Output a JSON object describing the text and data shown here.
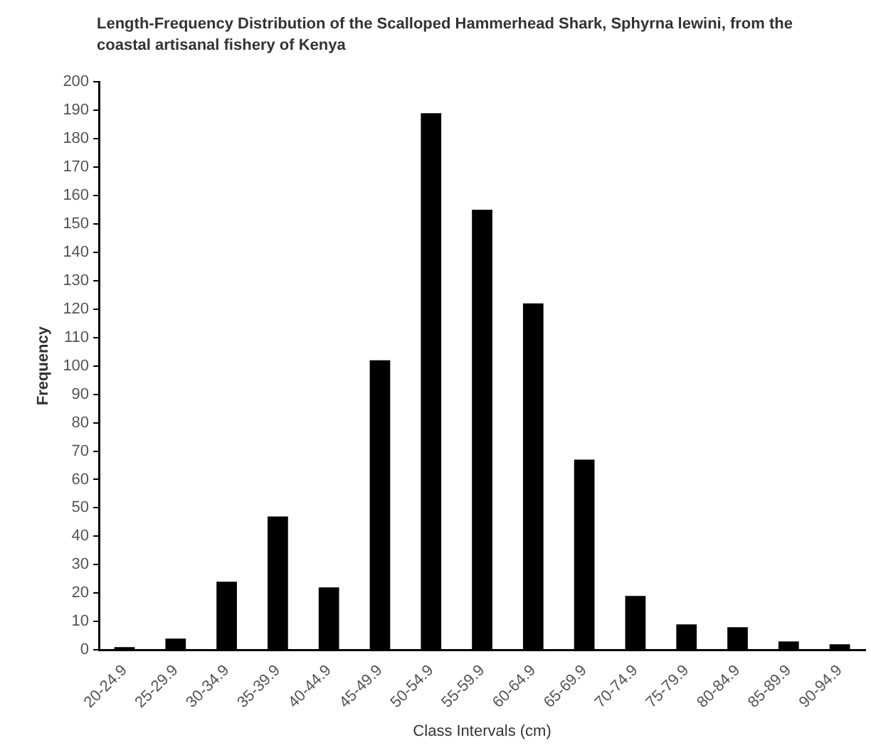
{
  "chart_data": {
    "type": "bar",
    "title": "Length-Frequency Distribution of the Scalloped Hammerhead Shark, Sphyrna lewini, from the coastal artisanal fishery of Kenya",
    "xlabel": "Class Intervals (cm)",
    "ylabel": "Frequency",
    "categories": [
      "20-24.9",
      "25-29.9",
      "30-34.9",
      "35-39.9",
      "40-44.9",
      "45-49.9",
      "50-54.9",
      "55-59.9",
      "60-64.9",
      "65-69.9",
      "70-74.9",
      "75-79.9",
      "80-84.9",
      "85-89.9",
      "90-94.9"
    ],
    "values": [
      1,
      4,
      24,
      47,
      22,
      102,
      189,
      155,
      122,
      67,
      19,
      9,
      8,
      3,
      2
    ],
    "color": "#000000",
    "ylim": [
      0,
      200
    ],
    "yticks": [
      0,
      10,
      20,
      30,
      40,
      50,
      60,
      70,
      80,
      90,
      100,
      110,
      120,
      130,
      140,
      150,
      160,
      170,
      180,
      190,
      200
    ],
    "grid": false,
    "legend": false
  }
}
